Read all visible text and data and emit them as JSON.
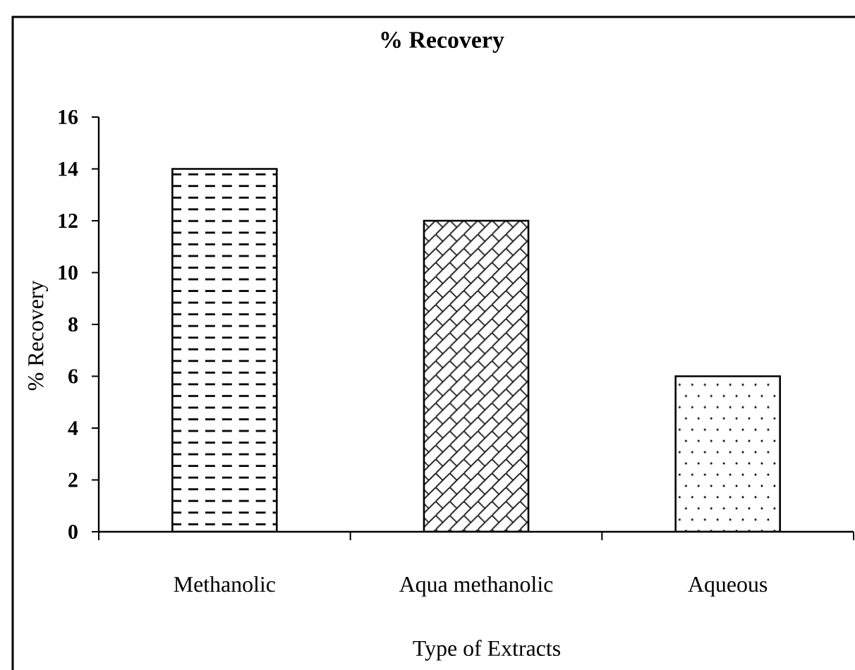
{
  "chart_data": {
    "type": "bar",
    "title": "% Recovery",
    "xlabel": "Type of Extracts",
    "ylabel": "% Recovery",
    "categories": [
      "Methanolic",
      "Aqua methanolic",
      "Aqueous"
    ],
    "values": [
      14,
      12,
      6
    ],
    "color": "#000000",
    "ylim": [
      0,
      16
    ],
    "yticks": [
      0,
      2,
      4,
      6,
      8,
      10,
      12,
      14,
      16
    ]
  }
}
